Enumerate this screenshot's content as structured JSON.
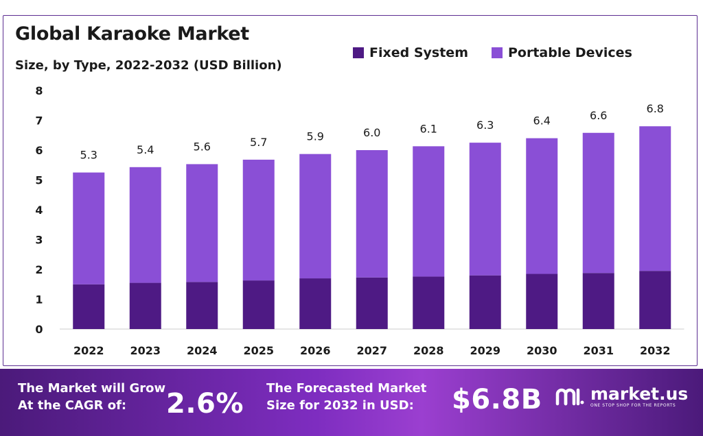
{
  "title": "Global Karaoke Market",
  "subtitle": "Size, by Type, 2022-2032 (USD Billion)",
  "legend": [
    {
      "label": "Fixed System",
      "color": "#4e1a84"
    },
    {
      "label": "Portable Devices",
      "color": "#8a4fd6"
    }
  ],
  "chart_data": {
    "type": "bar",
    "stacked": true,
    "categories": [
      "2022",
      "2023",
      "2024",
      "2025",
      "2026",
      "2027",
      "2028",
      "2029",
      "2030",
      "2031",
      "2032"
    ],
    "series": [
      {
        "name": "Fixed System",
        "color": "#4e1a84",
        "values": [
          1.5,
          1.55,
          1.58,
          1.63,
          1.7,
          1.73,
          1.76,
          1.8,
          1.85,
          1.88,
          1.95
        ]
      },
      {
        "name": "Portable Devices",
        "color": "#8a4fd6",
        "values": [
          3.75,
          3.88,
          3.95,
          4.05,
          4.17,
          4.27,
          4.37,
          4.45,
          4.55,
          4.7,
          4.85
        ]
      }
    ],
    "totals_labels": [
      "5.3",
      "5.4",
      "5.6",
      "5.7",
      "5.9",
      "6.0",
      "6.1",
      "6.3",
      "6.4",
      "6.6",
      "6.8"
    ],
    "ylim": [
      0,
      8
    ],
    "yticks": [
      "0",
      "1",
      "2",
      "3",
      "4",
      "5",
      "6",
      "7",
      "8"
    ],
    "grid": false
  },
  "footer": {
    "cagr_text_line1": "The Market will Grow",
    "cagr_text_line2": "At the CAGR of:",
    "cagr_value": "2.6%",
    "forecast_text_line1": "The Forecasted Market",
    "forecast_text_line2": "Size for 2032 in USD:",
    "forecast_value": "$6.8B",
    "brand_name": "market.us",
    "brand_tagline": "ONE STOP SHOP FOR THE REPORTS"
  }
}
